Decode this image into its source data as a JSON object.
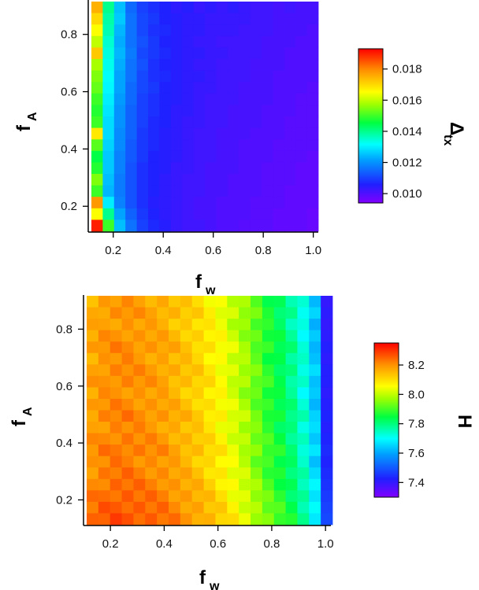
{
  "chart_data": [
    {
      "type": "heatmap",
      "xlabel": "f",
      "xlabel_sub": "w",
      "ylabel": "f",
      "ylabel_sub": "A",
      "colorbar_label": "Δ",
      "colorbar_label_sub": "tx",
      "x_ticks": [
        0.2,
        0.4,
        0.6,
        0.8,
        1.0
      ],
      "x_tick_labels": [
        "0.2",
        "0.4",
        "0.6",
        "0.8",
        "1.0"
      ],
      "y_ticks": [
        0.2,
        0.4,
        0.6,
        0.8
      ],
      "y_tick_labels": [
        "0.2",
        "0.4",
        "0.6",
        "0.8"
      ],
      "xlim": [
        0.1,
        1.02
      ],
      "ylim": [
        0.11,
        0.92
      ],
      "grid_x": [
        0.14,
        0.98,
        20
      ],
      "grid_y": [
        0.14,
        0.92,
        20
      ],
      "colorbar_ticks": [
        0.01,
        0.012,
        0.014,
        0.016,
        0.018
      ],
      "colorbar_tick_labels": [
        "0.010",
        "0.012",
        "0.014",
        "0.016",
        "0.018"
      ],
      "color_range": [
        0.0094,
        0.0193
      ],
      "colormap": "rainbow (violet → blue → cyan → green → yellow → orange → red)",
      "values_rows_top_to_bottom": [
        [
          0.0175,
          0.014,
          0.0125,
          0.0115,
          0.011,
          0.0108,
          0.0106,
          0.0104,
          0.0105,
          0.0103,
          0.0104,
          0.0103,
          0.0104,
          0.0103,
          0.0102,
          0.0102,
          0.0101,
          0.0102,
          0.0101,
          0.0101
        ],
        [
          0.017,
          0.0138,
          0.0126,
          0.0116,
          0.0111,
          0.0109,
          0.0106,
          0.0105,
          0.0104,
          0.0104,
          0.0103,
          0.0103,
          0.0103,
          0.0103,
          0.0102,
          0.0102,
          0.0101,
          0.0101,
          0.0101,
          0.0101
        ],
        [
          0.0165,
          0.0137,
          0.0124,
          0.0116,
          0.0111,
          0.0108,
          0.0107,
          0.0105,
          0.0104,
          0.0104,
          0.0103,
          0.0103,
          0.0103,
          0.0102,
          0.0102,
          0.0102,
          0.0101,
          0.0101,
          0.0101,
          0.01
        ],
        [
          0.016,
          0.0135,
          0.0123,
          0.0116,
          0.0112,
          0.0109,
          0.0106,
          0.0105,
          0.0104,
          0.0103,
          0.0103,
          0.0102,
          0.0102,
          0.0102,
          0.0102,
          0.0101,
          0.0101,
          0.0101,
          0.01,
          0.01
        ],
        [
          0.0172,
          0.0134,
          0.0124,
          0.0117,
          0.0111,
          0.0109,
          0.0107,
          0.0105,
          0.0104,
          0.0104,
          0.0103,
          0.0103,
          0.0102,
          0.0102,
          0.0102,
          0.0101,
          0.0101,
          0.01,
          0.01,
          0.01
        ],
        [
          0.0158,
          0.0133,
          0.0123,
          0.0116,
          0.0112,
          0.0108,
          0.0106,
          0.0105,
          0.0104,
          0.0103,
          0.0103,
          0.0102,
          0.0102,
          0.0102,
          0.0101,
          0.0101,
          0.0101,
          0.01,
          0.01,
          0.01
        ],
        [
          0.0155,
          0.0132,
          0.0122,
          0.0116,
          0.0111,
          0.0108,
          0.0107,
          0.0105,
          0.0104,
          0.0104,
          0.0103,
          0.0102,
          0.0102,
          0.0102,
          0.0101,
          0.0101,
          0.01,
          0.01,
          0.01,
          0.01
        ],
        [
          0.0153,
          0.0131,
          0.0122,
          0.0115,
          0.0111,
          0.0109,
          0.0106,
          0.0105,
          0.0104,
          0.0103,
          0.0103,
          0.0102,
          0.0102,
          0.0101,
          0.0101,
          0.0101,
          0.01,
          0.01,
          0.01,
          0.0099
        ],
        [
          0.015,
          0.013,
          0.0121,
          0.0115,
          0.011,
          0.0108,
          0.0106,
          0.0105,
          0.0104,
          0.0103,
          0.0102,
          0.0102,
          0.0102,
          0.0101,
          0.0101,
          0.0101,
          0.01,
          0.01,
          0.0099,
          0.0099
        ],
        [
          0.0148,
          0.0129,
          0.012,
          0.0114,
          0.011,
          0.0108,
          0.0106,
          0.0104,
          0.0104,
          0.0103,
          0.0102,
          0.0102,
          0.0101,
          0.0101,
          0.0101,
          0.01,
          0.01,
          0.01,
          0.0099,
          0.0099
        ],
        [
          0.015,
          0.0128,
          0.012,
          0.0114,
          0.011,
          0.0107,
          0.0106,
          0.0104,
          0.0103,
          0.0103,
          0.0102,
          0.0102,
          0.0101,
          0.0101,
          0.0101,
          0.01,
          0.01,
          0.0099,
          0.0099,
          0.0099
        ],
        [
          0.0168,
          0.0128,
          0.0119,
          0.0114,
          0.0109,
          0.0107,
          0.0105,
          0.0104,
          0.0103,
          0.0102,
          0.0102,
          0.0101,
          0.0101,
          0.0101,
          0.01,
          0.01,
          0.01,
          0.0099,
          0.0099,
          0.0099
        ],
        [
          0.0152,
          0.0127,
          0.0119,
          0.0113,
          0.0109,
          0.0107,
          0.0105,
          0.0104,
          0.0103,
          0.0102,
          0.0102,
          0.0101,
          0.0101,
          0.01,
          0.01,
          0.01,
          0.0099,
          0.0099,
          0.0099,
          0.0099
        ],
        [
          0.0145,
          0.0126,
          0.0118,
          0.0113,
          0.0109,
          0.0106,
          0.0105,
          0.0104,
          0.0103,
          0.0102,
          0.0102,
          0.0101,
          0.0101,
          0.01,
          0.01,
          0.01,
          0.0099,
          0.0099,
          0.0099,
          0.0098
        ],
        [
          0.0148,
          0.0126,
          0.0118,
          0.0112,
          0.0108,
          0.0106,
          0.0105,
          0.0103,
          0.0103,
          0.0102,
          0.0101,
          0.0101,
          0.0101,
          0.01,
          0.01,
          0.0099,
          0.0099,
          0.0099,
          0.0098,
          0.0098
        ],
        [
          0.0155,
          0.0125,
          0.0117,
          0.0112,
          0.0108,
          0.0106,
          0.0104,
          0.0103,
          0.0102,
          0.0102,
          0.0101,
          0.0101,
          0.01,
          0.01,
          0.01,
          0.0099,
          0.0099,
          0.0099,
          0.0098,
          0.0098
        ],
        [
          0.015,
          0.0124,
          0.0117,
          0.0112,
          0.0108,
          0.0106,
          0.0104,
          0.0103,
          0.0102,
          0.0102,
          0.0101,
          0.0101,
          0.01,
          0.01,
          0.01,
          0.0099,
          0.0099,
          0.0098,
          0.0098,
          0.0098
        ],
        [
          0.0178,
          0.013,
          0.0118,
          0.0112,
          0.0108,
          0.0105,
          0.0104,
          0.0103,
          0.0102,
          0.0101,
          0.0101,
          0.01,
          0.01,
          0.01,
          0.0099,
          0.0099,
          0.0099,
          0.0098,
          0.0098,
          0.0098
        ],
        [
          0.0165,
          0.014,
          0.0122,
          0.0114,
          0.0109,
          0.0106,
          0.0104,
          0.0103,
          0.0102,
          0.0101,
          0.0101,
          0.01,
          0.01,
          0.01,
          0.0099,
          0.0099,
          0.0098,
          0.0098,
          0.0098,
          0.0097
        ],
        [
          0.019,
          0.015,
          0.0125,
          0.0116,
          0.011,
          0.0107,
          0.0105,
          0.0103,
          0.0102,
          0.0102,
          0.0101,
          0.01,
          0.01,
          0.0099,
          0.0099,
          0.0099,
          0.0098,
          0.0098,
          0.0098,
          0.0097
        ]
      ]
    },
    {
      "type": "heatmap",
      "xlabel": "f",
      "xlabel_sub": "w",
      "ylabel": "f",
      "ylabel_sub": "A",
      "colorbar_label": "H",
      "x_ticks": [
        0.2,
        0.4,
        0.6,
        0.8,
        1.0
      ],
      "x_tick_labels": [
        "0.2",
        "0.4",
        "0.6",
        "0.8",
        "1.0"
      ],
      "y_ticks": [
        0.2,
        0.4,
        0.6,
        0.8
      ],
      "y_tick_labels": [
        "0.2",
        "0.4",
        "0.6",
        "0.8"
      ],
      "xlim": [
        0.1,
        1.02
      ],
      "ylim": [
        0.11,
        0.92
      ],
      "grid_x": [
        0.14,
        1.0,
        21
      ],
      "grid_y": [
        0.14,
        0.92,
        20
      ],
      "colorbar_ticks": [
        7.4,
        7.6,
        7.8,
        8.0,
        8.2
      ],
      "colorbar_tick_labels": [
        "7.4",
        "7.6",
        "7.8",
        "8.0",
        "8.2"
      ],
      "color_range": [
        7.3,
        8.35
      ],
      "colormap": "rainbow (violet → blue → cyan → green → yellow → orange → red)",
      "column_profile": [
        8.16,
        8.18,
        8.19,
        8.19,
        8.18,
        8.17,
        8.16,
        8.14,
        8.12,
        8.1,
        8.07,
        8.04,
        8.0,
        7.96,
        7.91,
        7.86,
        7.82,
        7.77,
        7.71,
        7.62,
        7.4
      ],
      "row_offsets_top_to_bottom": [
        0.0,
        0.01,
        0.0,
        0.01,
        0.02,
        0.01,
        0.02,
        0.02,
        0.01,
        0.02,
        0.03,
        0.02,
        0.03,
        0.04,
        0.03,
        0.04,
        0.05,
        0.06,
        0.07,
        0.08
      ]
    }
  ]
}
